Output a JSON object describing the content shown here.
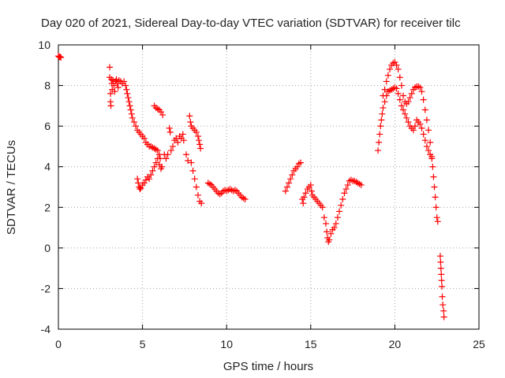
{
  "chart_data": {
    "type": "scatter",
    "title": "Day 020 of 2021, Sidereal Day-to-day VTEC variation (SDTVAR) for receiver tilc",
    "xlabel": "GPS time / hours",
    "ylabel": "SDTVAR / TECUs",
    "xlim": [
      0,
      25
    ],
    "ylim": [
      -4,
      10
    ],
    "x_ticks": [
      0,
      5,
      10,
      15,
      20,
      25
    ],
    "y_ticks": [
      -4,
      -2,
      0,
      2,
      4,
      6,
      8,
      10
    ],
    "x_tick_labels": [
      "0",
      "5",
      "10",
      "15",
      "20",
      "25"
    ],
    "y_tick_labels": [
      "-4",
      "-2",
      "0",
      "2",
      "4",
      "6",
      "8",
      "10"
    ],
    "grid": true,
    "marker": "+",
    "color": "#ff0000",
    "series": [
      {
        "name": "",
        "points": [
          [
            0.0,
            9.45
          ],
          [
            0.05,
            9.4
          ],
          [
            0.1,
            9.42
          ],
          [
            0.15,
            9.38
          ],
          [
            3.05,
            8.9
          ],
          [
            3.05,
            8.4
          ],
          [
            3.1,
            7.6
          ],
          [
            3.1,
            7.2
          ],
          [
            3.12,
            7.0
          ],
          [
            3.15,
            8.3
          ],
          [
            3.18,
            8.1
          ],
          [
            3.2,
            7.8
          ],
          [
            3.25,
            8.25
          ],
          [
            3.3,
            8.0
          ],
          [
            3.35,
            7.7
          ],
          [
            3.4,
            8.2
          ],
          [
            3.45,
            8.3
          ],
          [
            3.5,
            8.1
          ],
          [
            3.55,
            7.9
          ],
          [
            3.6,
            8.25
          ],
          [
            3.7,
            8.2
          ],
          [
            3.8,
            8.1
          ],
          [
            3.9,
            8.2
          ],
          [
            4.0,
            8.0
          ],
          [
            4.05,
            7.8
          ],
          [
            4.1,
            7.6
          ],
          [
            4.15,
            7.4
          ],
          [
            4.2,
            7.2
          ],
          [
            4.25,
            7.0
          ],
          [
            4.3,
            6.8
          ],
          [
            4.35,
            6.6
          ],
          [
            4.4,
            6.4
          ],
          [
            4.5,
            6.2
          ],
          [
            4.6,
            6.0
          ],
          [
            4.7,
            5.8
          ],
          [
            4.8,
            5.7
          ],
          [
            4.9,
            5.6
          ],
          [
            5.0,
            5.5
          ],
          [
            5.1,
            5.4
          ],
          [
            5.2,
            5.2
          ],
          [
            5.3,
            5.1
          ],
          [
            5.4,
            5.0
          ],
          [
            5.5,
            5.0
          ],
          [
            5.6,
            4.95
          ],
          [
            5.7,
            4.9
          ],
          [
            5.8,
            4.85
          ],
          [
            5.9,
            4.8
          ],
          [
            6.0,
            4.6
          ],
          [
            6.05,
            4.4
          ],
          [
            4.7,
            3.4
          ],
          [
            4.75,
            3.2
          ],
          [
            4.8,
            3.0
          ],
          [
            4.85,
            2.9
          ],
          [
            4.9,
            2.95
          ],
          [
            5.0,
            3.1
          ],
          [
            5.1,
            3.2
          ],
          [
            5.2,
            3.35
          ],
          [
            5.3,
            3.5
          ],
          [
            5.4,
            3.4
          ],
          [
            5.5,
            3.6
          ],
          [
            5.6,
            3.8
          ],
          [
            5.7,
            4.0
          ],
          [
            5.8,
            4.2
          ],
          [
            5.9,
            4.4
          ],
          [
            6.0,
            4.1
          ],
          [
            6.1,
            3.9
          ],
          [
            6.15,
            4.0
          ],
          [
            5.7,
            7.0
          ],
          [
            5.8,
            6.9
          ],
          [
            5.9,
            6.85
          ],
          [
            6.0,
            6.8
          ],
          [
            6.1,
            6.7
          ],
          [
            6.2,
            6.55
          ],
          [
            6.3,
            4.6
          ],
          [
            6.4,
            4.4
          ],
          [
            6.5,
            4.6
          ],
          [
            6.6,
            5.9
          ],
          [
            6.65,
            5.7
          ],
          [
            6.7,
            4.8
          ],
          [
            6.8,
            5.0
          ],
          [
            6.9,
            5.3
          ],
          [
            7.0,
            5.4
          ],
          [
            7.1,
            5.2
          ],
          [
            7.2,
            5.5
          ],
          [
            7.3,
            5.4
          ],
          [
            7.4,
            5.6
          ],
          [
            7.45,
            5.3
          ],
          [
            7.6,
            4.6
          ],
          [
            7.7,
            4.3
          ],
          [
            7.8,
            6.5
          ],
          [
            7.85,
            6.2
          ],
          [
            7.9,
            6.0
          ],
          [
            8.0,
            5.9
          ],
          [
            8.1,
            5.8
          ],
          [
            8.2,
            5.7
          ],
          [
            8.3,
            5.5
          ],
          [
            8.35,
            5.3
          ],
          [
            8.4,
            5.1
          ],
          [
            8.45,
            4.9
          ],
          [
            7.9,
            4.2
          ],
          [
            8.0,
            3.8
          ],
          [
            8.1,
            3.4
          ],
          [
            8.2,
            3.0
          ],
          [
            8.3,
            2.6
          ],
          [
            8.4,
            2.3
          ],
          [
            8.5,
            2.2
          ],
          [
            8.9,
            3.2
          ],
          [
            9.0,
            3.15
          ],
          [
            9.1,
            3.1
          ],
          [
            9.2,
            3.0
          ],
          [
            9.3,
            2.9
          ],
          [
            9.4,
            2.8
          ],
          [
            9.5,
            2.7
          ],
          [
            9.6,
            2.65
          ],
          [
            9.7,
            2.7
          ],
          [
            9.8,
            2.8
          ],
          [
            9.9,
            2.85
          ],
          [
            10.0,
            2.8
          ],
          [
            10.1,
            2.85
          ],
          [
            10.2,
            2.9
          ],
          [
            10.3,
            2.85
          ],
          [
            10.4,
            2.8
          ],
          [
            10.5,
            2.85
          ],
          [
            10.6,
            2.8
          ],
          [
            10.7,
            2.7
          ],
          [
            10.8,
            2.6
          ],
          [
            10.9,
            2.5
          ],
          [
            11.0,
            2.45
          ],
          [
            11.1,
            2.4
          ],
          [
            13.5,
            2.8
          ],
          [
            13.6,
            3.0
          ],
          [
            13.7,
            3.2
          ],
          [
            13.8,
            3.4
          ],
          [
            13.9,
            3.6
          ],
          [
            14.0,
            3.8
          ],
          [
            14.1,
            3.9
          ],
          [
            14.2,
            4.0
          ],
          [
            14.3,
            4.15
          ],
          [
            14.4,
            4.2
          ],
          [
            14.5,
            2.4
          ],
          [
            14.55,
            2.2
          ],
          [
            14.6,
            2.5
          ],
          [
            14.7,
            2.7
          ],
          [
            14.8,
            2.9
          ],
          [
            14.9,
            3.0
          ],
          [
            15.0,
            3.1
          ],
          [
            15.05,
            2.8
          ],
          [
            15.1,
            2.6
          ],
          [
            15.2,
            2.5
          ],
          [
            15.3,
            2.4
          ],
          [
            15.4,
            2.3
          ],
          [
            15.5,
            2.2
          ],
          [
            15.6,
            2.1
          ],
          [
            15.7,
            2.0
          ],
          [
            15.8,
            1.5
          ],
          [
            15.9,
            1.2
          ],
          [
            15.95,
            0.8
          ],
          [
            16.0,
            0.5
          ],
          [
            16.05,
            0.3
          ],
          [
            16.1,
            0.4
          ],
          [
            16.2,
            0.7
          ],
          [
            16.3,
            0.9
          ],
          [
            16.4,
            1.0
          ],
          [
            16.5,
            1.2
          ],
          [
            16.6,
            1.5
          ],
          [
            16.7,
            1.8
          ],
          [
            16.8,
            2.1
          ],
          [
            16.9,
            2.4
          ],
          [
            17.0,
            2.7
          ],
          [
            17.1,
            2.9
          ],
          [
            17.2,
            3.1
          ],
          [
            17.3,
            3.3
          ],
          [
            17.4,
            3.35
          ],
          [
            17.5,
            3.3
          ],
          [
            17.6,
            3.3
          ],
          [
            17.7,
            3.25
          ],
          [
            17.8,
            3.2
          ],
          [
            17.9,
            3.15
          ],
          [
            18.0,
            3.1
          ],
          [
            19.0,
            4.8
          ],
          [
            19.05,
            5.2
          ],
          [
            19.1,
            5.6
          ],
          [
            19.15,
            6.0
          ],
          [
            19.2,
            6.3
          ],
          [
            19.25,
            6.6
          ],
          [
            19.3,
            6.9
          ],
          [
            19.4,
            7.2
          ],
          [
            19.5,
            7.5
          ],
          [
            19.6,
            7.7
          ],
          [
            19.7,
            7.75
          ],
          [
            19.8,
            7.8
          ],
          [
            19.9,
            7.85
          ],
          [
            20.0,
            7.9
          ],
          [
            20.1,
            7.85
          ],
          [
            20.2,
            7.6
          ],
          [
            20.3,
            7.3
          ],
          [
            20.4,
            7.0
          ],
          [
            20.5,
            6.8
          ],
          [
            20.6,
            6.6
          ],
          [
            20.7,
            6.4
          ],
          [
            20.8,
            6.2
          ],
          [
            20.9,
            6.0
          ],
          [
            21.0,
            5.9
          ],
          [
            21.1,
            5.8
          ],
          [
            21.2,
            6.0
          ],
          [
            21.3,
            6.3
          ],
          [
            21.4,
            6.2
          ],
          [
            21.5,
            6.1
          ],
          [
            21.6,
            5.9
          ],
          [
            21.7,
            5.6
          ],
          [
            21.8,
            5.3
          ],
          [
            21.9,
            5.0
          ],
          [
            22.0,
            4.8
          ],
          [
            22.1,
            4.6
          ],
          [
            22.2,
            4.4
          ],
          [
            19.3,
            7.5
          ],
          [
            19.4,
            7.8
          ],
          [
            19.5,
            8.2
          ],
          [
            19.6,
            8.5
          ],
          [
            19.7,
            8.8
          ],
          [
            19.8,
            9.0
          ],
          [
            19.9,
            9.1
          ],
          [
            20.0,
            9.15
          ],
          [
            20.1,
            9.0
          ],
          [
            20.2,
            8.8
          ],
          [
            20.3,
            8.4
          ],
          [
            20.4,
            8.0
          ],
          [
            20.5,
            7.5
          ],
          [
            20.6,
            7.2
          ],
          [
            20.7,
            7.1
          ],
          [
            20.8,
            7.2
          ],
          [
            20.9,
            7.4
          ],
          [
            21.0,
            7.6
          ],
          [
            21.1,
            7.8
          ],
          [
            21.2,
            7.9
          ],
          [
            21.3,
            7.95
          ],
          [
            21.4,
            7.95
          ],
          [
            21.5,
            7.9
          ],
          [
            21.6,
            7.7
          ],
          [
            21.7,
            7.3
          ],
          [
            21.8,
            6.8
          ],
          [
            21.9,
            6.3
          ],
          [
            22.0,
            5.8
          ],
          [
            22.1,
            5.2
          ],
          [
            22.2,
            4.5
          ],
          [
            22.25,
            4.0
          ],
          [
            22.3,
            3.5
          ],
          [
            22.35,
            3.0
          ],
          [
            22.4,
            2.5
          ],
          [
            22.45,
            2.0
          ],
          [
            22.5,
            1.5
          ],
          [
            22.55,
            1.3
          ],
          [
            22.7,
            -0.4
          ],
          [
            22.72,
            -0.7
          ],
          [
            22.74,
            -1.0
          ],
          [
            22.76,
            -1.3
          ],
          [
            22.78,
            -1.6
          ],
          [
            22.8,
            -1.9
          ],
          [
            22.82,
            -2.4
          ],
          [
            22.85,
            -2.8
          ],
          [
            22.9,
            -3.1
          ],
          [
            22.92,
            -3.4
          ]
        ]
      }
    ]
  }
}
